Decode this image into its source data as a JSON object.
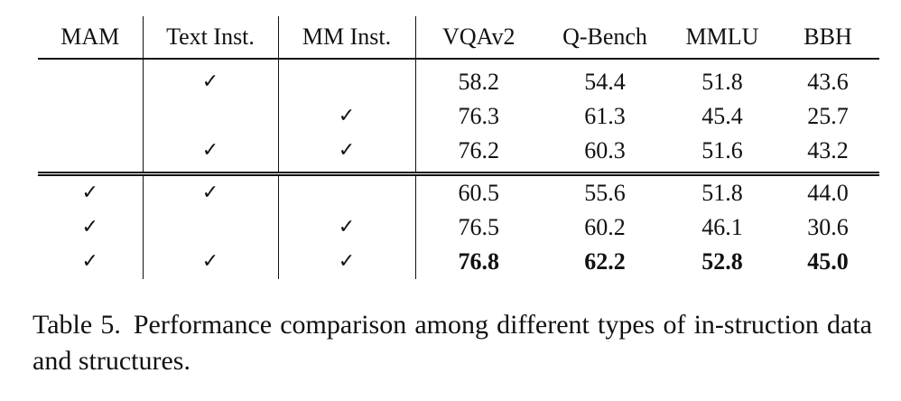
{
  "table": {
    "headers": [
      "MAM",
      "Text Inst.",
      "MM Inst.",
      "VQAv2",
      "Q-Bench",
      "MMLU",
      "BBH"
    ],
    "check_symbol": "✓",
    "group1": [
      {
        "mam": "",
        "text": "✓",
        "mm": "",
        "vqav2": "58.2",
        "qbench": "54.4",
        "mmlu": "51.8",
        "bbh": "43.6"
      },
      {
        "mam": "",
        "text": "",
        "mm": "✓",
        "vqav2": "76.3",
        "qbench": "61.3",
        "mmlu": "45.4",
        "bbh": "25.7"
      },
      {
        "mam": "",
        "text": "✓",
        "mm": "✓",
        "vqav2": "76.2",
        "qbench": "60.3",
        "mmlu": "51.6",
        "bbh": "43.2"
      }
    ],
    "group2": [
      {
        "mam": "✓",
        "text": "✓",
        "mm": "",
        "vqav2": "60.5",
        "qbench": "55.6",
        "mmlu": "51.8",
        "bbh": "44.0"
      },
      {
        "mam": "✓",
        "text": "",
        "mm": "✓",
        "vqav2": "76.5",
        "qbench": "60.2",
        "mmlu": "46.1",
        "bbh": "30.6"
      },
      {
        "mam": "✓",
        "text": "✓",
        "mm": "✓",
        "vqav2": "76.8",
        "qbench": "62.2",
        "mmlu": "52.8",
        "bbh": "45.0",
        "bold": true
      }
    ]
  },
  "caption": {
    "label": "Table 5.",
    "text": "Performance comparison among different types of in-struction data and structures."
  }
}
